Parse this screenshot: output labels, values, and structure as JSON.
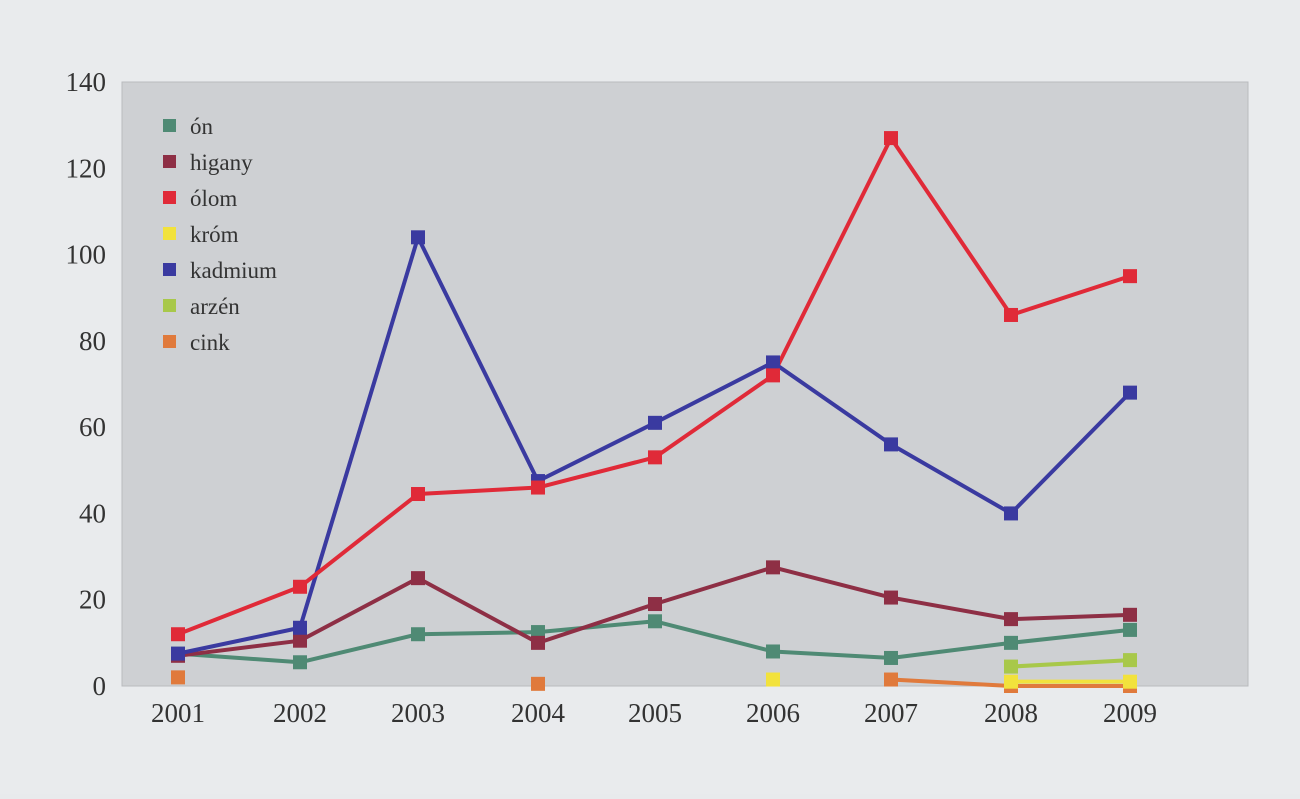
{
  "chart_data": {
    "type": "line",
    "title": "",
    "xlabel": "",
    "ylabel": "",
    "x": [
      "2001",
      "2002",
      "2003",
      "2004",
      "2005",
      "2006",
      "2007",
      "2008",
      "2009"
    ],
    "ylim": [
      0,
      140
    ],
    "yticks": [
      0,
      20,
      40,
      60,
      80,
      100,
      120,
      140
    ],
    "grid": false,
    "legend_position": "top-left",
    "series": [
      {
        "name": "ón",
        "color": "#4f8a74",
        "values": [
          7.5,
          5.5,
          12,
          12.5,
          15,
          8,
          6.5,
          10,
          13
        ]
      },
      {
        "name": "higany",
        "color": "#8e2f45",
        "values": [
          7,
          10.5,
          25,
          10,
          19,
          27.5,
          20.5,
          15.5,
          16.5
        ]
      },
      {
        "name": "ólom",
        "color": "#e02a38",
        "values": [
          12,
          23,
          44.5,
          46,
          53,
          72,
          127,
          86,
          95
        ]
      },
      {
        "name": "króm",
        "color": "#f2e23c",
        "values": [
          null,
          null,
          null,
          null,
          null,
          1.5,
          null,
          1,
          1
        ]
      },
      {
        "name": "kadmium",
        "color": "#3a3aa0",
        "values": [
          7.5,
          13.5,
          104,
          47.5,
          61,
          75,
          56,
          40,
          68
        ]
      },
      {
        "name": "arzén",
        "color": "#a8c84a",
        "values": [
          null,
          null,
          null,
          null,
          null,
          null,
          null,
          4.5,
          6
        ]
      },
      {
        "name": "cink",
        "color": "#e07a3c",
        "values": [
          2,
          null,
          null,
          0.5,
          null,
          null,
          1.5,
          0,
          0
        ]
      }
    ]
  }
}
